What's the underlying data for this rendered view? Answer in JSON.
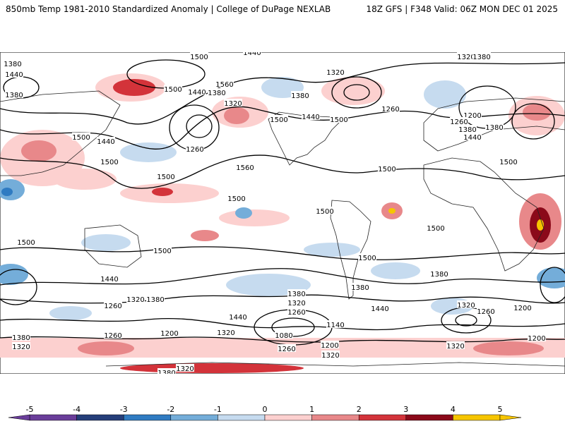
{
  "header": {
    "left": "850mb Temp 1981-2010 Standardized Anomaly | College of DuPage NEXLAB",
    "right": "18Z GFS | F348 Valid: 06Z MON DEC 01 2025"
  },
  "colorbar": {
    "ticks": [
      "-5",
      "-4",
      "-3",
      "-2",
      "-1",
      "0",
      "1",
      "2",
      "3",
      "4",
      "5"
    ],
    "colors": [
      "#6a3d9a",
      "#253e7a",
      "#2f7bc2",
      "#74add9",
      "#c6dbef",
      "#ffffff",
      "#fcd0cf",
      "#e8888a",
      "#d3333a",
      "#8b0a1a",
      "#f6c500"
    ]
  },
  "contour_labels": [
    "1440",
    "1380",
    "1500",
    "1440",
    "1380",
    "1320",
    "1380",
    "1560",
    "1500",
    "1440",
    "1380",
    "1320",
    "1500",
    "1440",
    "1500",
    "1380",
    "1320",
    "1260",
    "1200",
    "1260",
    "1380",
    "1440",
    "1380",
    "1500",
    "1440",
    "1500",
    "1500",
    "1560",
    "1260",
    "1560",
    "1500",
    "1500",
    "1500",
    "1500",
    "1500",
    "1500",
    "1500",
    "1500",
    "1500",
    "1440",
    "1380",
    "1320",
    "1260",
    "1440",
    "1380",
    "1320",
    "1260",
    "1200",
    "1320",
    "1440",
    "1380",
    "1320",
    "1260",
    "1200",
    "1080",
    "1140",
    "1200",
    "1260",
    "1320",
    "1380",
    "1380",
    "1320",
    "1260",
    "1200",
    "1320",
    "1320",
    "1380"
  ]
}
